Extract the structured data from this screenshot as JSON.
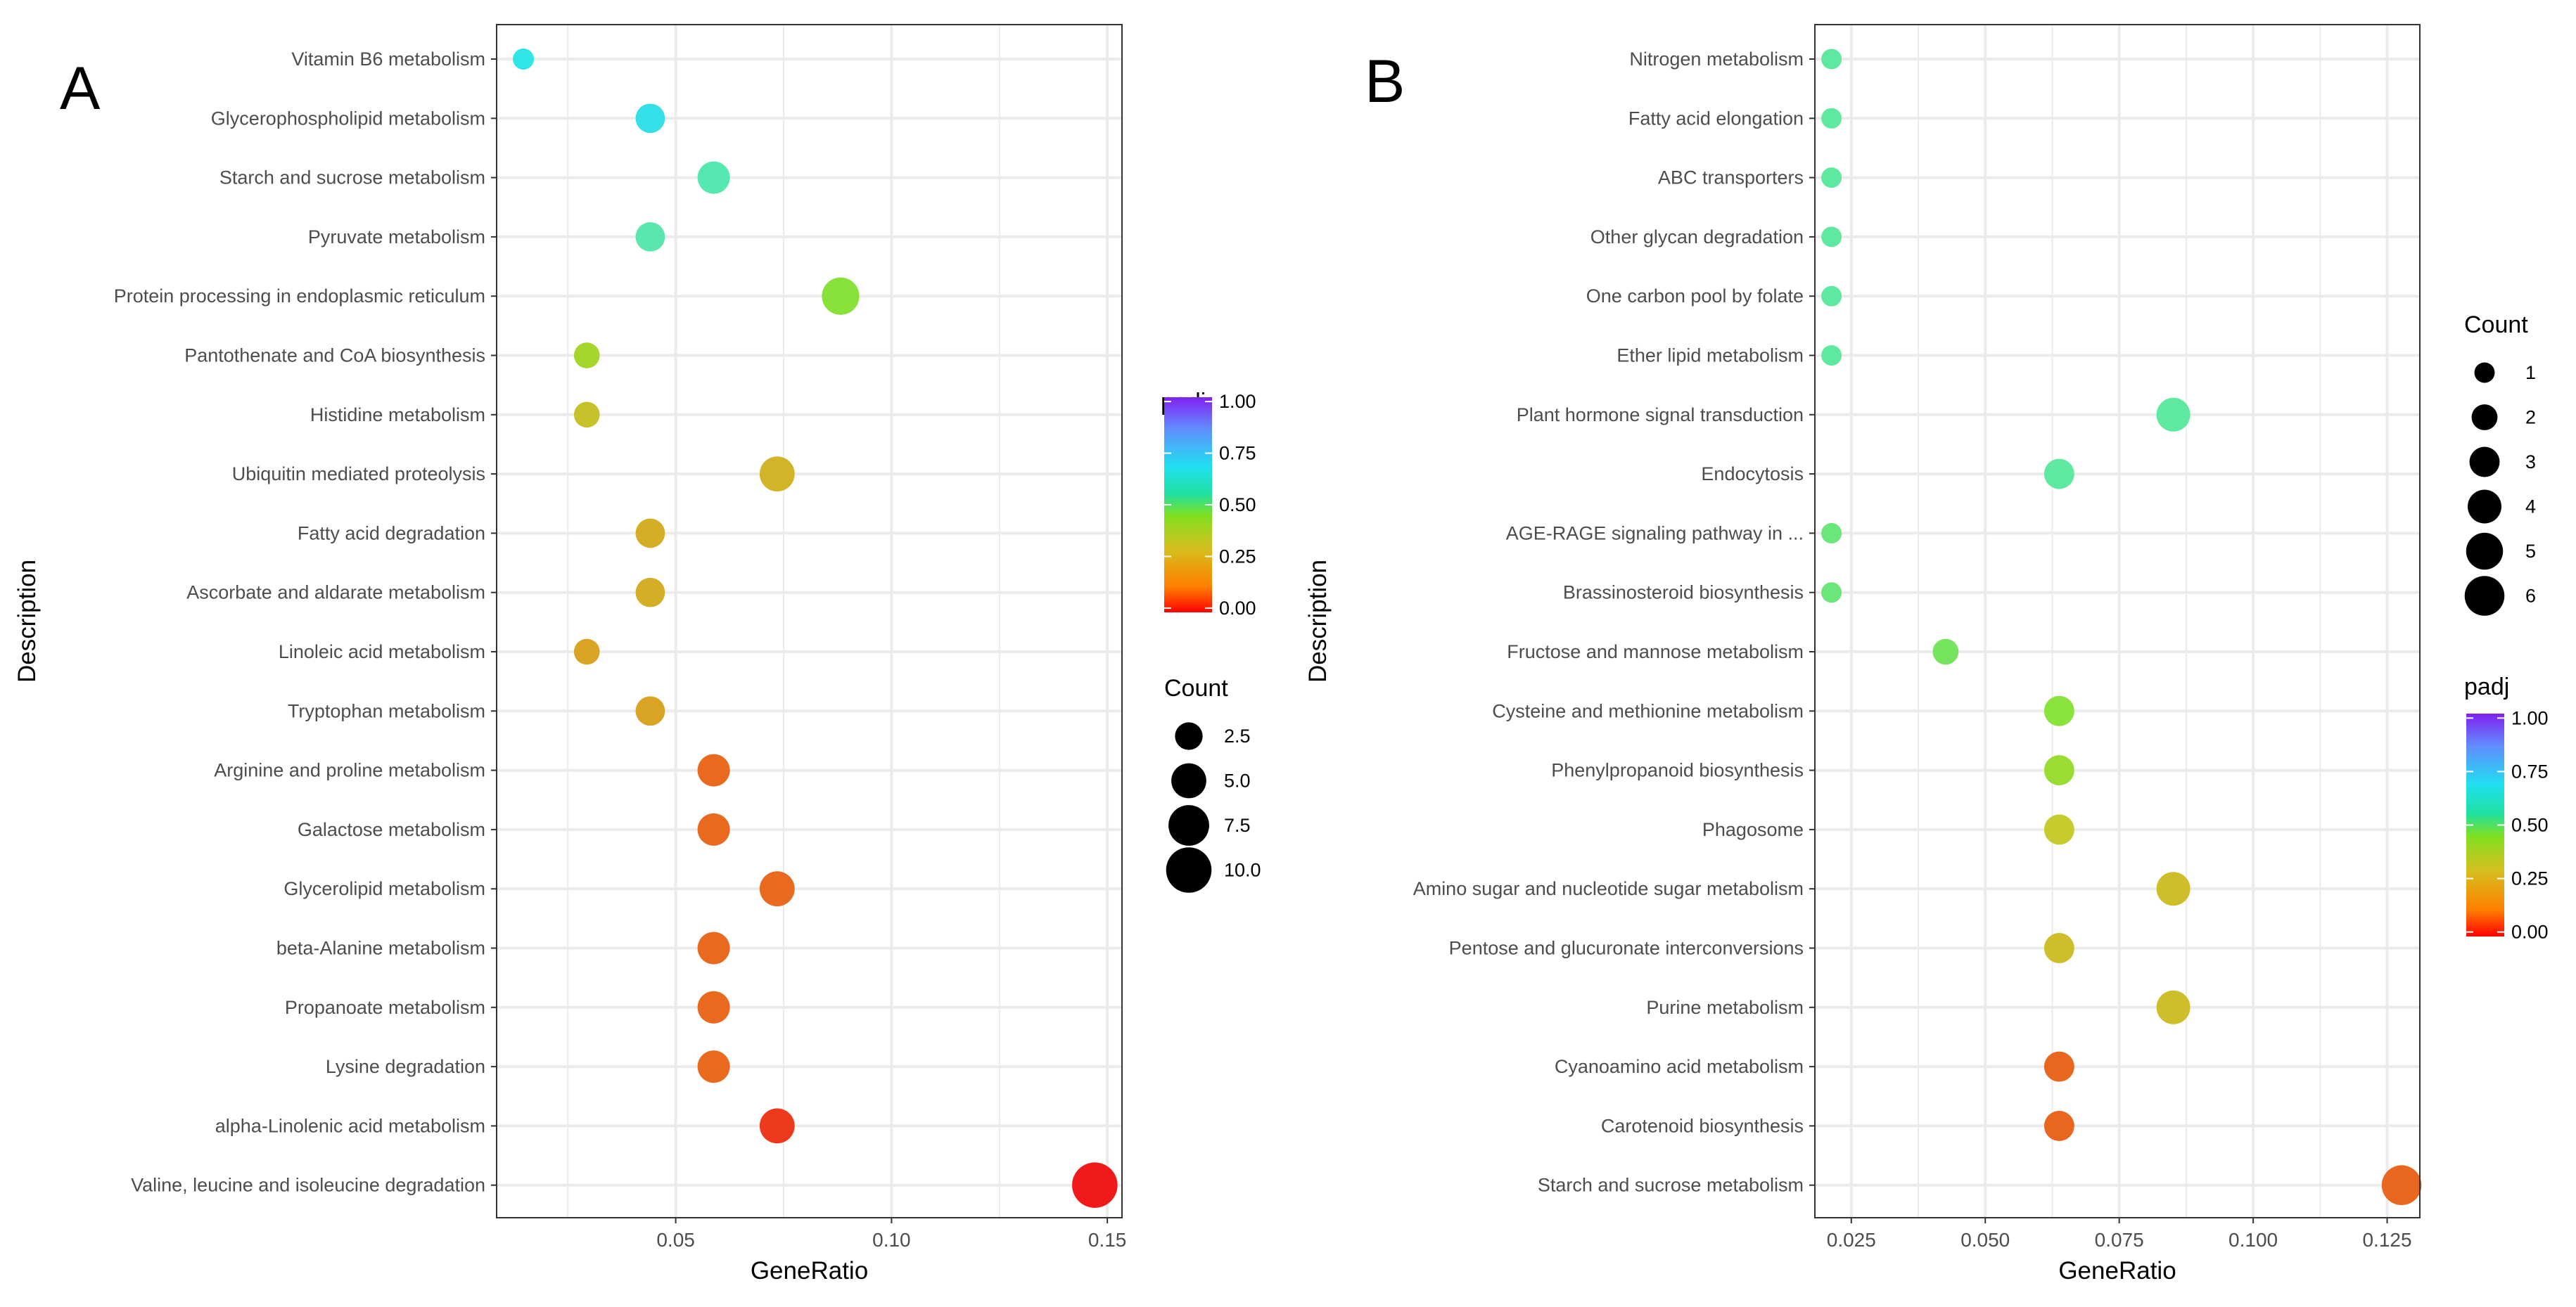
{
  "chart_data": [
    {
      "type": "scatter",
      "panel_label": "A",
      "xlabel": "GeneRatio",
      "ylabel": "Description",
      "xlim": [
        0.0085,
        0.1534
      ],
      "xticks": [
        {
          "value": 0.05,
          "label": "0.05"
        },
        {
          "value": 0.1,
          "label": "0.10"
        },
        {
          "value": 0.15,
          "label": "0.15"
        }
      ],
      "grid": true,
      "points": [
        {
          "term": "Vitamin B6 metabolism",
          "gene_ratio": 0.0147,
          "count": 1,
          "padj": 0.55,
          "color": "#2EE6E6"
        },
        {
          "term": "Glycerophospholipid metabolism",
          "gene_ratio": 0.0441,
          "count": 3,
          "padj": 0.6,
          "color": "#33E0E8"
        },
        {
          "term": "Starch and sucrose metabolism",
          "gene_ratio": 0.0588,
          "count": 4,
          "padj": 0.48,
          "color": "#55E8B0"
        },
        {
          "term": "Pyruvate metabolism",
          "gene_ratio": 0.0441,
          "count": 3,
          "padj": 0.48,
          "color": "#5BE6AE"
        },
        {
          "term": "Protein processing in endoplasmic reticulum",
          "gene_ratio": 0.0882,
          "count": 6,
          "padj": 0.38,
          "color": "#88E23A"
        },
        {
          "term": "Pantothenate and CoA biosynthesis",
          "gene_ratio": 0.0294,
          "count": 2,
          "padj": 0.33,
          "color": "#A6D62C"
        },
        {
          "term": "Histidine metabolism",
          "gene_ratio": 0.0294,
          "count": 2,
          "padj": 0.28,
          "color": "#C8C22A"
        },
        {
          "term": "Ubiquitin mediated proteolysis",
          "gene_ratio": 0.0735,
          "count": 5,
          "padj": 0.25,
          "color": "#D2B428"
        },
        {
          "term": "Fatty acid degradation",
          "gene_ratio": 0.0441,
          "count": 3,
          "padj": 0.24,
          "color": "#D4AE26"
        },
        {
          "term": "Ascorbate and aldarate metabolism",
          "gene_ratio": 0.0441,
          "count": 3,
          "padj": 0.24,
          "color": "#D4AE26"
        },
        {
          "term": "Linoleic acid metabolism",
          "gene_ratio": 0.0294,
          "count": 2,
          "padj": 0.22,
          "color": "#D9A324"
        },
        {
          "term": "Tryptophan metabolism",
          "gene_ratio": 0.0441,
          "count": 3,
          "padj": 0.22,
          "color": "#D9A324"
        },
        {
          "term": "Arginine and proline metabolism",
          "gene_ratio": 0.0588,
          "count": 4,
          "padj": 0.12,
          "color": "#E9691E"
        },
        {
          "term": "Galactose metabolism",
          "gene_ratio": 0.0588,
          "count": 4,
          "padj": 0.12,
          "color": "#E9691E"
        },
        {
          "term": "Glycerolipid metabolism",
          "gene_ratio": 0.0735,
          "count": 5,
          "padj": 0.12,
          "color": "#E9691E"
        },
        {
          "term": "beta-Alanine metabolism",
          "gene_ratio": 0.0588,
          "count": 4,
          "padj": 0.12,
          "color": "#E9691E"
        },
        {
          "term": "Propanoate metabolism",
          "gene_ratio": 0.0588,
          "count": 4,
          "padj": 0.12,
          "color": "#E9691E"
        },
        {
          "term": "Lysine degradation",
          "gene_ratio": 0.0588,
          "count": 4,
          "padj": 0.12,
          "color": "#E9691E"
        },
        {
          "term": "alpha-Linolenic acid metabolism",
          "gene_ratio": 0.0735,
          "count": 5,
          "padj": 0.04,
          "color": "#EE3A1C"
        },
        {
          "term": "Valine, leucine and isoleucine degradation",
          "gene_ratio": 0.1471,
          "count": 10,
          "padj": 0.0,
          "color": "#F01A1A"
        }
      ],
      "legends": {
        "padj": {
          "title": "padj",
          "ticks": [
            {
              "value": 1.0,
              "label": "1.00"
            },
            {
              "value": 0.75,
              "label": "0.75"
            },
            {
              "value": 0.5,
              "label": "0.50"
            },
            {
              "value": 0.25,
              "label": "0.25"
            },
            {
              "value": 0.0,
              "label": "0.00"
            }
          ]
        },
        "count": {
          "title": "Count",
          "entries": [
            {
              "value": 2.5,
              "label": "2.5"
            },
            {
              "value": 5.0,
              "label": "5.0"
            },
            {
              "value": 7.5,
              "label": "7.5"
            },
            {
              "value": 10.0,
              "label": "10.0"
            }
          ]
        }
      }
    },
    {
      "type": "scatter",
      "panel_label": "B",
      "xlabel": "GeneRatio",
      "ylabel": "Description",
      "xlim": [
        0.0182,
        0.1311
      ],
      "xticks": [
        {
          "value": 0.025,
          "label": "0.025"
        },
        {
          "value": 0.05,
          "label": "0.050"
        },
        {
          "value": 0.075,
          "label": "0.075"
        },
        {
          "value": 0.1,
          "label": "0.100"
        },
        {
          "value": 0.125,
          "label": "0.125"
        }
      ],
      "grid": true,
      "points": [
        {
          "term": "Nitrogen metabolism",
          "gene_ratio": 0.0213,
          "count": 1,
          "padj": 0.47,
          "color": "#5EE8A0"
        },
        {
          "term": "Fatty acid elongation",
          "gene_ratio": 0.0213,
          "count": 1,
          "padj": 0.47,
          "color": "#5EE8A0"
        },
        {
          "term": "ABC transporters",
          "gene_ratio": 0.0213,
          "count": 1,
          "padj": 0.47,
          "color": "#5EE8A0"
        },
        {
          "term": "Other glycan degradation",
          "gene_ratio": 0.0213,
          "count": 1,
          "padj": 0.47,
          "color": "#5EE8A0"
        },
        {
          "term": "One carbon pool by folate",
          "gene_ratio": 0.0213,
          "count": 1,
          "padj": 0.47,
          "color": "#5EE8A0"
        },
        {
          "term": "Ether lipid metabolism",
          "gene_ratio": 0.0213,
          "count": 1,
          "padj": 0.47,
          "color": "#5EE8A0"
        },
        {
          "term": "Plant hormone signal transduction",
          "gene_ratio": 0.0851,
          "count": 4,
          "padj": 0.47,
          "color": "#5EE8A0"
        },
        {
          "term": "Endocytosis",
          "gene_ratio": 0.0638,
          "count": 3,
          "padj": 0.47,
          "color": "#5EE8A0"
        },
        {
          "term": "AGE-RAGE signaling pathway in ...",
          "gene_ratio": 0.0213,
          "count": 1,
          "padj": 0.44,
          "color": "#6BE67A"
        },
        {
          "term": "Brassinosteroid biosynthesis",
          "gene_ratio": 0.0213,
          "count": 1,
          "padj": 0.44,
          "color": "#6BE67A"
        },
        {
          "term": "Fructose and mannose metabolism",
          "gene_ratio": 0.0426,
          "count": 2,
          "padj": 0.42,
          "color": "#76E45E"
        },
        {
          "term": "Cysteine and methionine metabolism",
          "gene_ratio": 0.0638,
          "count": 3,
          "padj": 0.38,
          "color": "#8AE23C"
        },
        {
          "term": "Phenylpropanoid biosynthesis",
          "gene_ratio": 0.0638,
          "count": 3,
          "padj": 0.36,
          "color": "#9ADD32"
        },
        {
          "term": "Phagosome",
          "gene_ratio": 0.0638,
          "count": 3,
          "padj": 0.3,
          "color": "#C6CC2E"
        },
        {
          "term": "Amino sugar and nucleotide sugar metabolism",
          "gene_ratio": 0.0851,
          "count": 4,
          "padj": 0.28,
          "color": "#CDBE2A"
        },
        {
          "term": "Pentose and glucuronate interconversions",
          "gene_ratio": 0.0638,
          "count": 3,
          "padj": 0.28,
          "color": "#CDBE2A"
        },
        {
          "term": "Purine metabolism",
          "gene_ratio": 0.0851,
          "count": 4,
          "padj": 0.28,
          "color": "#CDBE2A"
        },
        {
          "term": "Cyanoamino acid metabolism",
          "gene_ratio": 0.0638,
          "count": 3,
          "padj": 0.1,
          "color": "#E9661E"
        },
        {
          "term": "Carotenoid biosynthesis",
          "gene_ratio": 0.0638,
          "count": 3,
          "padj": 0.1,
          "color": "#E9661E"
        },
        {
          "term": "Starch and sucrose metabolism",
          "gene_ratio": 0.1277,
          "count": 6,
          "padj": 0.1,
          "color": "#E9661E"
        }
      ],
      "legends": {
        "count": {
          "title": "Count",
          "entries": [
            {
              "value": 1,
              "label": "1"
            },
            {
              "value": 2,
              "label": "2"
            },
            {
              "value": 3,
              "label": "3"
            },
            {
              "value": 4,
              "label": "4"
            },
            {
              "value": 5,
              "label": "5"
            },
            {
              "value": 6,
              "label": "6"
            }
          ]
        },
        "padj": {
          "title": "padj",
          "ticks": [
            {
              "value": 1.0,
              "label": "1.00"
            },
            {
              "value": 0.75,
              "label": "0.75"
            },
            {
              "value": 0.5,
              "label": "0.50"
            },
            {
              "value": 0.25,
              "label": "0.25"
            },
            {
              "value": 0.0,
              "label": "0.00"
            }
          ]
        }
      }
    }
  ],
  "colors": {
    "padj_gradient": [
      "#FF0000",
      "#FF8000",
      "#D4C020",
      "#80E020",
      "#20E0A0",
      "#20E0F0",
      "#6090FF",
      "#8020F0"
    ],
    "grid": "#EBEBEB",
    "text": "#4D4D4D"
  }
}
